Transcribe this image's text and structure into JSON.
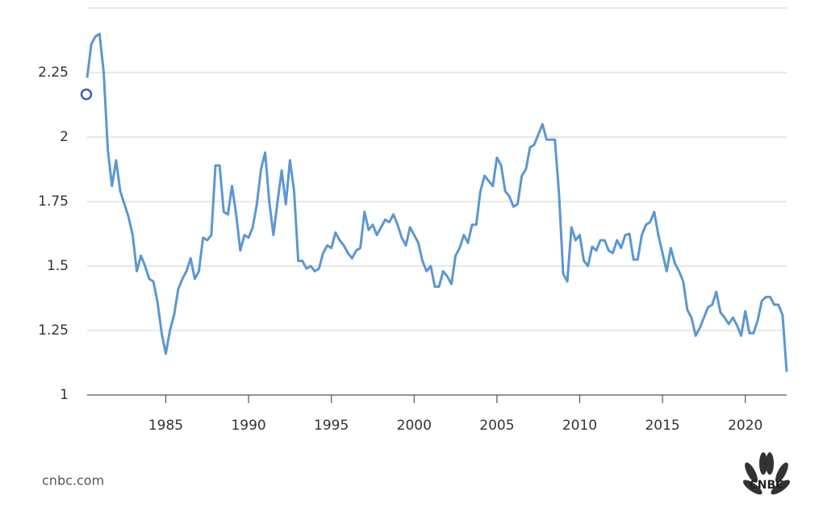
{
  "chart_data": {
    "type": "line",
    "source": "cnbc.com",
    "logo": "CNBC",
    "x": [
      1980.25,
      1980.5,
      1980.75,
      1981,
      1981.25,
      1981.5,
      1981.75,
      1982,
      1982.25,
      1982.5,
      1982.75,
      1983,
      1983.25,
      1983.5,
      1983.75,
      1984,
      1984.25,
      1984.5,
      1984.75,
      1985,
      1985.25,
      1985.5,
      1985.75,
      1986,
      1986.25,
      1986.5,
      1986.75,
      1987,
      1987.25,
      1987.5,
      1987.75,
      1988,
      1988.25,
      1988.5,
      1988.75,
      1989,
      1989.25,
      1989.5,
      1989.75,
      1990,
      1990.25,
      1990.5,
      1990.75,
      1991,
      1991.25,
      1991.5,
      1991.75,
      1992,
      1992.25,
      1992.5,
      1992.75,
      1993,
      1993.25,
      1993.5,
      1993.75,
      1994,
      1994.25,
      1994.5,
      1994.75,
      1995,
      1995.25,
      1995.5,
      1995.75,
      1996,
      1996.25,
      1996.5,
      1996.75,
      1997,
      1997.25,
      1997.5,
      1997.75,
      1998,
      1998.25,
      1998.5,
      1998.75,
      1999,
      1999.25,
      1999.5,
      1999.75,
      2000,
      2000.25,
      2000.5,
      2000.75,
      2001,
      2001.25,
      2001.5,
      2001.75,
      2002,
      2002.25,
      2002.5,
      2002.75,
      2003,
      2003.25,
      2003.5,
      2003.75,
      2004,
      2004.25,
      2004.5,
      2004.75,
      2005,
      2005.25,
      2005.5,
      2005.75,
      2006,
      2006.25,
      2006.5,
      2006.75,
      2007,
      2007.25,
      2007.5,
      2007.75,
      2008,
      2008.25,
      2008.5,
      2008.75,
      2009,
      2009.25,
      2009.5,
      2009.75,
      2010,
      2010.25,
      2010.5,
      2010.75,
      2011,
      2011.25,
      2011.5,
      2011.75,
      2012,
      2012.25,
      2012.5,
      2012.75,
      2013,
      2013.25,
      2013.5,
      2013.75,
      2014,
      2014.25,
      2014.5,
      2014.75,
      2015,
      2015.25,
      2015.5,
      2015.75,
      2016,
      2016.25,
      2016.5,
      2016.75,
      2017,
      2017.25,
      2017.5,
      2017.75,
      2018,
      2018.25,
      2018.5,
      2018.75,
      2019,
      2019.25,
      2019.5,
      2019.75,
      2020,
      2020.25,
      2020.5,
      2020.75,
      2021,
      2021.25,
      2021.5,
      2021.75,
      2022,
      2022.25,
      2022.5
    ],
    "series": [
      {
        "color": "#5b97d1",
        "values": [
          2.23,
          2.36,
          2.39,
          2.4,
          2.25,
          1.95,
          1.81,
          1.91,
          1.79,
          1.74,
          1.69,
          1.62,
          1.48,
          1.54,
          1.5,
          1.45,
          1.44,
          1.36,
          1.24,
          1.16,
          1.25,
          1.31,
          1.41,
          1.45,
          1.48,
          1.53,
          1.45,
          1.48,
          1.61,
          1.6,
          1.62,
          1.89,
          1.89,
          1.71,
          1.7,
          1.81,
          1.7,
          1.56,
          1.62,
          1.61,
          1.65,
          1.74,
          1.875,
          1.94,
          1.75,
          1.62,
          1.75,
          1.87,
          1.74,
          1.91,
          1.79,
          1.52,
          1.52,
          1.49,
          1.5,
          1.48,
          1.49,
          1.55,
          1.58,
          1.57,
          1.63,
          1.6,
          1.58,
          1.55,
          1.53,
          1.56,
          1.57,
          1.71,
          1.64,
          1.66,
          1.62,
          1.65,
          1.68,
          1.67,
          1.7,
          1.66,
          1.61,
          1.58,
          1.65,
          1.62,
          1.59,
          1.52,
          1.48,
          1.5,
          1.42,
          1.42,
          1.48,
          1.46,
          1.43,
          1.54,
          1.57,
          1.62,
          1.59,
          1.66,
          1.66,
          1.79,
          1.85,
          1.83,
          1.81,
          1.92,
          1.89,
          1.79,
          1.77,
          1.73,
          1.74,
          1.85,
          1.875,
          1.96,
          1.97,
          2.01,
          2.05,
          1.99,
          1.99,
          1.99,
          1.78,
          1.47,
          1.44,
          1.65,
          1.6,
          1.62,
          1.52,
          1.5,
          1.575,
          1.56,
          1.6,
          1.6,
          1.56,
          1.55,
          1.6,
          1.57,
          1.62,
          1.625,
          1.525,
          1.525,
          1.62,
          1.66,
          1.67,
          1.71,
          1.62,
          1.55,
          1.48,
          1.57,
          1.51,
          1.48,
          1.44,
          1.33,
          1.3,
          1.23,
          1.26,
          1.3,
          1.34,
          1.35,
          1.4,
          1.32,
          1.3,
          1.275,
          1.3,
          1.27,
          1.23,
          1.325,
          1.24,
          1.24,
          1.29,
          1.365,
          1.38,
          1.38,
          1.35,
          1.35,
          1.31,
          1.09
        ]
      }
    ],
    "xlim": [
      1980.25,
      2022.5
    ],
    "xticks": [
      1985,
      1990,
      1995,
      2000,
      2005,
      2010,
      2015,
      2020
    ],
    "ylim": [
      1,
      2.5
    ],
    "yticks": [
      1,
      1.25,
      1.5,
      1.75,
      2,
      2.25
    ],
    "grid": true
  }
}
